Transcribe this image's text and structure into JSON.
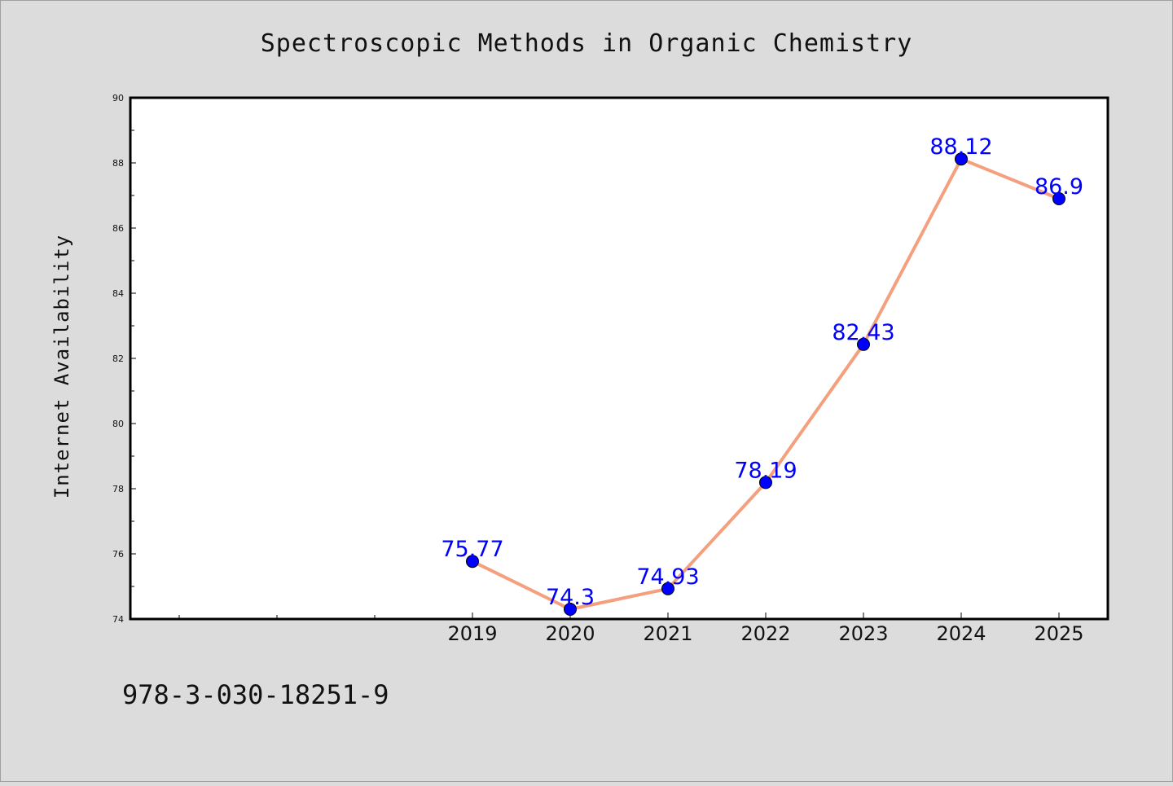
{
  "figure": {
    "background": "#dcdcdc",
    "plot_background": "#ffffff",
    "footer_text": "978-3-030-18251-9"
  },
  "chart_data": {
    "type": "line",
    "title": "Spectroscopic Methods in Organic Chemistry",
    "xlabel": "",
    "ylabel": "Internet Availability",
    "categories": [
      "2019",
      "2020",
      "2021",
      "2022",
      "2023",
      "2024",
      "2025"
    ],
    "series": [
      {
        "values": [
          75.77,
          74.3,
          74.93,
          78.19,
          82.43,
          88.12,
          86.9
        ],
        "labels": [
          "75.77",
          "74.3",
          "74.93",
          "78.19",
          "82.43",
          "88.12",
          "86.9"
        ],
        "line_color": "#f4a07e",
        "marker_color": "#0000ff",
        "label_color": "#0000ff"
      }
    ],
    "ylim": [
      74,
      90
    ],
    "yticks": [
      "74",
      "76",
      "78",
      "80",
      "82",
      "84",
      "86",
      "88",
      "90"
    ],
    "xrange_years": [
      2015.5,
      2025.5
    ],
    "grid": false,
    "legend": "none"
  }
}
